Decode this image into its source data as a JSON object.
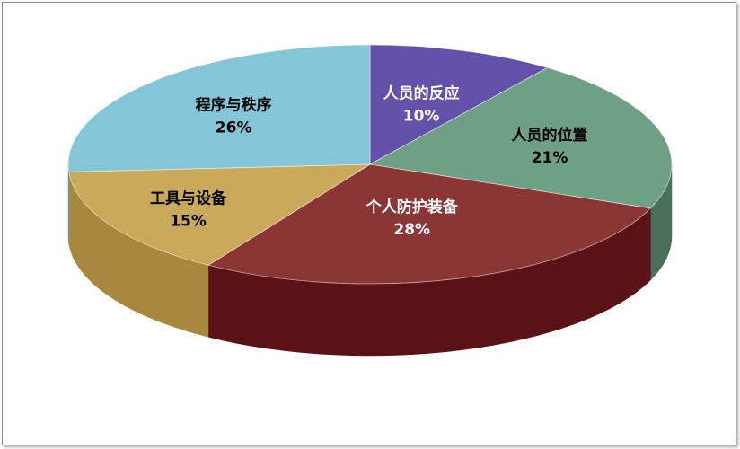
{
  "chart_data": {
    "type": "pie",
    "style": "3d",
    "slices": [
      {
        "name": "人员的反应",
        "value": 10,
        "label": "10%",
        "color": "#6251a8",
        "side_color": "#3f3470",
        "label_color": "#ffffff"
      },
      {
        "name": "人员的位置",
        "value": 21,
        "label": "21%",
        "color": "#6fa085",
        "side_color": "#4a705a",
        "label_color": "#000000"
      },
      {
        "name": "个人防护装备",
        "value": 28,
        "label": "28%",
        "color": "#8b3535",
        "side_color": "#5a1216",
        "label_color": "#ffffff"
      },
      {
        "name": "工具与设备",
        "value": 15,
        "label": "15%",
        "color": "#c9a95a",
        "side_color": "#a8883c",
        "label_color": "#000000"
      },
      {
        "name": "程序与秩序",
        "value": 26,
        "label": "26%",
        "color": "#84c5d8",
        "side_color": "#5c9aac",
        "label_color": "#000000"
      }
    ],
    "start": "12 o'clock",
    "direction": "clockwise",
    "legend": "none"
  }
}
